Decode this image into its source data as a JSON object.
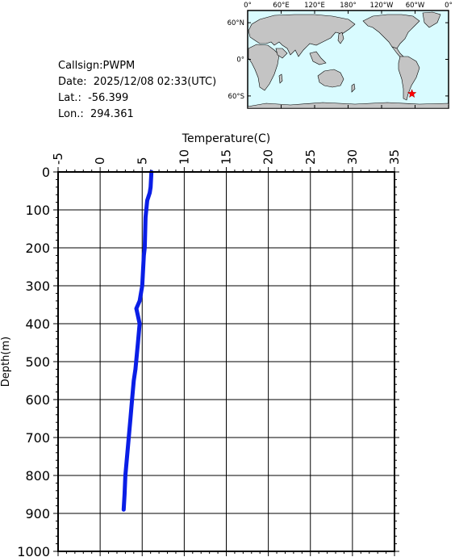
{
  "info": {
    "callsign": "Callsign:PWPM",
    "date": "Date:  2025/12/08 02:33(UTC)",
    "lat": "Lat.:  -56.399",
    "lon": "Lon.:  294.361"
  },
  "colors": {
    "profile": "#0a1ee6",
    "ocean": "#d9fbff",
    "land": "#c4c4c4",
    "marker": "#ff0000"
  },
  "map": {
    "lon_labels": [
      "0°",
      "60°E",
      "120°E",
      "180°",
      "120°W",
      "60°W",
      "0°"
    ],
    "lat_labels": [
      "60°N",
      "0°",
      "60°S"
    ],
    "marker": {
      "lat": -56.399,
      "lon": 294.361,
      "symbol": "star"
    }
  },
  "chart_data": {
    "type": "line",
    "title": "",
    "xlabel": "Temperature(C)",
    "ylabel": "Depth(m)",
    "xlim": [
      -5,
      35
    ],
    "ylim": [
      1000,
      0
    ],
    "x_ticks": [
      "-5",
      "0",
      "5",
      "10",
      "15",
      "20",
      "25",
      "30",
      "35"
    ],
    "y_ticks": [
      "0",
      "100",
      "200",
      "300",
      "400",
      "500",
      "600",
      "700",
      "800",
      "900",
      "1000"
    ],
    "grid": true,
    "legend": "none",
    "series": [
      {
        "x": [
          6.1,
          6.0,
          5.9,
          5.6,
          5.4,
          5.3,
          5.2,
          5.1,
          5.0,
          4.7,
          4.3,
          4.7,
          4.5,
          4.2,
          4.0,
          3.8,
          3.6,
          3.4,
          3.2,
          3.0,
          2.9,
          2.8
        ],
        "y": [
          0,
          40,
          55,
          75,
          120,
          200,
          220,
          260,
          300,
          340,
          360,
          400,
          450,
          520,
          550,
          600,
          650,
          700,
          750,
          800,
          850,
          890
        ]
      }
    ]
  }
}
